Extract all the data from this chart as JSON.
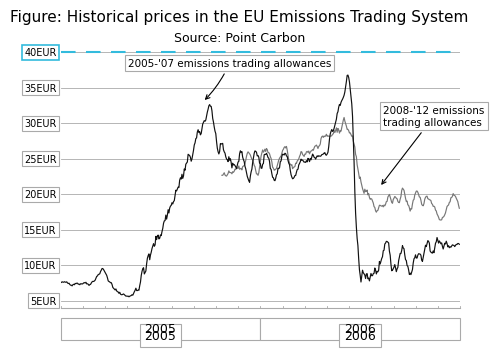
{
  "title": "Figure: Historical prices in the EU Emissions Trading System",
  "subtitle": "Source: Point Carbon",
  "yticks": [
    5,
    10,
    15,
    20,
    25,
    30,
    35,
    40
  ],
  "ylim": [
    4,
    41
  ],
  "dashed_line_y": 40,
  "dashed_line_color": "#33BBDD",
  "annotation1_text": "2005-'07 emissions trading allowances",
  "annotation2_text": "2008-'12 emissions\ntrading allowances",
  "title_fontsize": 11,
  "subtitle_fontsize": 9,
  "background_color": "#ffffff",
  "line1_color": "#111111",
  "line2_color": "#777777",
  "gray_line_color": "#aaaaaa",
  "label_box_color": "#aaaaaa",
  "cyan_box_color": "#33BBDD"
}
